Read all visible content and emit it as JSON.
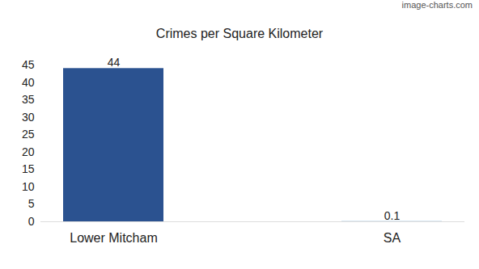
{
  "chart_data": {
    "type": "bar",
    "title": "Crimes per Square Kilometer",
    "annotation": "image-charts.com",
    "categories": [
      "Lower Mitcham",
      "SA"
    ],
    "values": [
      44,
      0.1
    ],
    "colors": [
      "#2b5290",
      "#a9c6e3"
    ],
    "ylim": [
      0,
      45
    ],
    "yticks": [
      0,
      5,
      10,
      15,
      20,
      25,
      30,
      35,
      40,
      45
    ],
    "grid": false,
    "data_labels": true
  }
}
